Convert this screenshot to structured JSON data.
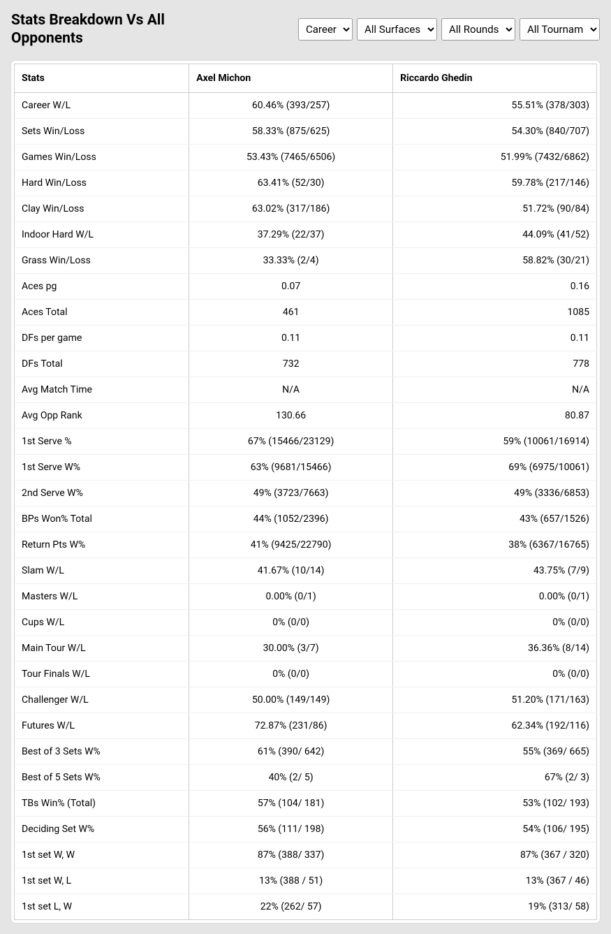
{
  "title": "Stats Breakdown Vs All Opponents",
  "filters": {
    "period": "Career",
    "surface": "All Surfaces",
    "rounds": "All Rounds",
    "tournaments": "All Tournaments"
  },
  "columns": {
    "stat": "Stats",
    "player1": "Axel Michon",
    "player2": "Riccardo Ghedin"
  },
  "rows": [
    {
      "stat": "Career W/L",
      "p1": "60.46% (393/257)",
      "p2": "55.51% (378/303)"
    },
    {
      "stat": "Sets Win/Loss",
      "p1": "58.33% (875/625)",
      "p2": "54.30% (840/707)"
    },
    {
      "stat": "Games Win/Loss",
      "p1": "53.43% (7465/6506)",
      "p2": "51.99% (7432/6862)"
    },
    {
      "stat": "Hard Win/Loss",
      "p1": "63.41% (52/30)",
      "p2": "59.78% (217/146)"
    },
    {
      "stat": "Clay Win/Loss",
      "p1": "63.02% (317/186)",
      "p2": "51.72% (90/84)"
    },
    {
      "stat": "Indoor Hard W/L",
      "p1": "37.29% (22/37)",
      "p2": "44.09% (41/52)"
    },
    {
      "stat": "Grass Win/Loss",
      "p1": "33.33% (2/4)",
      "p2": "58.82% (30/21)"
    },
    {
      "stat": "Aces pg",
      "p1": "0.07",
      "p2": "0.16"
    },
    {
      "stat": "Aces Total",
      "p1": "461",
      "p2": "1085"
    },
    {
      "stat": "DFs per game",
      "p1": "0.11",
      "p2": "0.11"
    },
    {
      "stat": "DFs Total",
      "p1": "732",
      "p2": "778"
    },
    {
      "stat": "Avg Match Time",
      "p1": "N/A",
      "p2": "N/A"
    },
    {
      "stat": "Avg Opp Rank",
      "p1": "130.66",
      "p2": "80.87"
    },
    {
      "stat": "1st Serve %",
      "p1": "67% (15466/23129)",
      "p2": "59% (10061/16914)"
    },
    {
      "stat": "1st Serve W%",
      "p1": "63% (9681/15466)",
      "p2": "69% (6975/10061)"
    },
    {
      "stat": "2nd Serve W%",
      "p1": "49% (3723/7663)",
      "p2": "49% (3336/6853)"
    },
    {
      "stat": "BPs Won% Total",
      "p1": "44% (1052/2396)",
      "p2": "43% (657/1526)"
    },
    {
      "stat": "Return Pts W%",
      "p1": "41% (9425/22790)",
      "p2": "38% (6367/16765)"
    },
    {
      "stat": "Slam W/L",
      "p1": "41.67% (10/14)",
      "p2": "43.75% (7/9)"
    },
    {
      "stat": "Masters W/L",
      "p1": "0.00% (0/1)",
      "p2": "0.00% (0/1)"
    },
    {
      "stat": "Cups W/L",
      "p1": "0% (0/0)",
      "p2": "0% (0/0)"
    },
    {
      "stat": "Main Tour W/L",
      "p1": "30.00% (3/7)",
      "p2": "36.36% (8/14)"
    },
    {
      "stat": "Tour Finals W/L",
      "p1": "0% (0/0)",
      "p2": "0% (0/0)"
    },
    {
      "stat": "Challenger W/L",
      "p1": "50.00% (149/149)",
      "p2": "51.20% (171/163)"
    },
    {
      "stat": "Futures W/L",
      "p1": "72.87% (231/86)",
      "p2": "62.34% (192/116)"
    },
    {
      "stat": "Best of 3 Sets W%",
      "p1": "61% (390/ 642)",
      "p2": "55% (369/ 665)"
    },
    {
      "stat": "Best of 5 Sets W%",
      "p1": "40% (2/ 5)",
      "p2": "67% (2/ 3)"
    },
    {
      "stat": "TBs Win% (Total)",
      "p1": "57% (104/ 181)",
      "p2": "53% (102/ 193)"
    },
    {
      "stat": "Deciding Set W%",
      "p1": "56% (111/ 198)",
      "p2": "54% (106/ 195)"
    },
    {
      "stat": "1st set W, W",
      "p1": "87% (388/ 337)",
      "p2": "87% (367 / 320)"
    },
    {
      "stat": "1st set W, L",
      "p1": "13% (388 / 51)",
      "p2": "13% (367 / 46)"
    },
    {
      "stat": "1st set L, W",
      "p1": "22% (262/ 57)",
      "p2": "19% (313/ 58)"
    }
  ]
}
